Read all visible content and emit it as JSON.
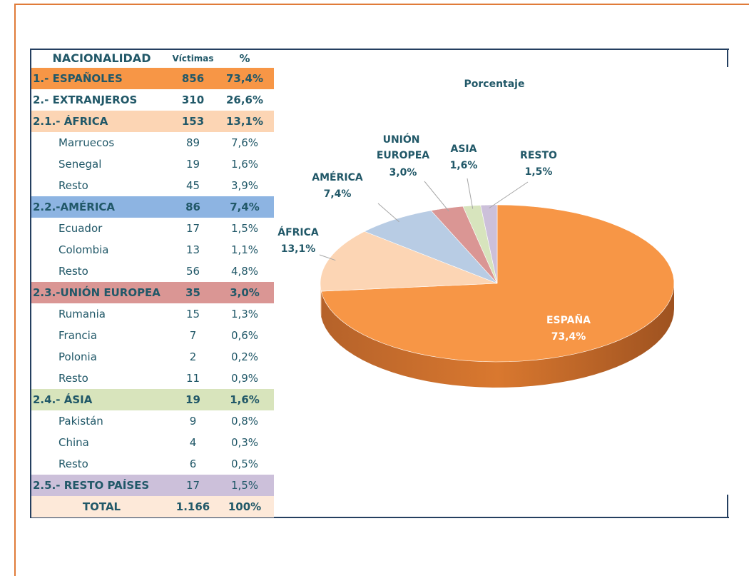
{
  "table": {
    "header": [
      "NACIONALIDAD",
      "Víctimas",
      "%"
    ],
    "rows": [
      [
        "1.- ESPAÑOLES",
        "856",
        "73,4%"
      ],
      [
        "2.- EXTRANJEROS",
        "310",
        "26,6%"
      ],
      [
        "2.1.- ÁFRICA",
        "153",
        "13,1%"
      ],
      [
        "Marruecos",
        "89",
        "7,6%"
      ],
      [
        "Senegal",
        "19",
        "1,6%"
      ],
      [
        "Resto",
        "45",
        "3,9%"
      ],
      [
        "2.2.-AMÉRICA",
        "86",
        "7,4%"
      ],
      [
        "Ecuador",
        "17",
        "1,5%"
      ],
      [
        "Colombia",
        "13",
        "1,1%"
      ],
      [
        "Resto",
        "56",
        "4,8%"
      ],
      [
        "2.3.-UNIÓN EUROPEA",
        "35",
        "3,0%"
      ],
      [
        "Rumania",
        "15",
        "1,3%"
      ],
      [
        "Francia",
        "7",
        "0,6%"
      ],
      [
        "Polonia",
        "2",
        "0,2%"
      ],
      [
        "Resto",
        "11",
        "0,9%"
      ],
      [
        "2.4.- ÁSIA",
        "19",
        "1,6%"
      ],
      [
        "Pakistán",
        "9",
        "0,8%"
      ],
      [
        "China",
        "4",
        "0,3%"
      ],
      [
        "Resto",
        "6",
        "0,5%"
      ],
      [
        "2.5.- RESTO PAÍSES",
        "17",
        "1,5%"
      ],
      [
        "TOTAL",
        "1.166",
        "100%"
      ]
    ]
  },
  "chart_data": {
    "type": "pie",
    "title": "Porcentaje",
    "categories": [
      "ESPAÑA",
      "ÁFRICA",
      "AMÉRICA",
      "UNIÓN EUROPEA",
      "ASIA",
      "RESTO"
    ],
    "values": [
      73.4,
      13.1,
      7.4,
      3.0,
      1.6,
      1.5
    ],
    "value_labels": [
      "73,4%",
      "13,1%",
      "7,4%",
      "3,0%",
      "1,6%",
      "1,5%"
    ],
    "colors": [
      "#f79646",
      "#fcd5b4",
      "#b8cce4",
      "#da9694",
      "#d7e4bd",
      "#ccc0da"
    ]
  }
}
